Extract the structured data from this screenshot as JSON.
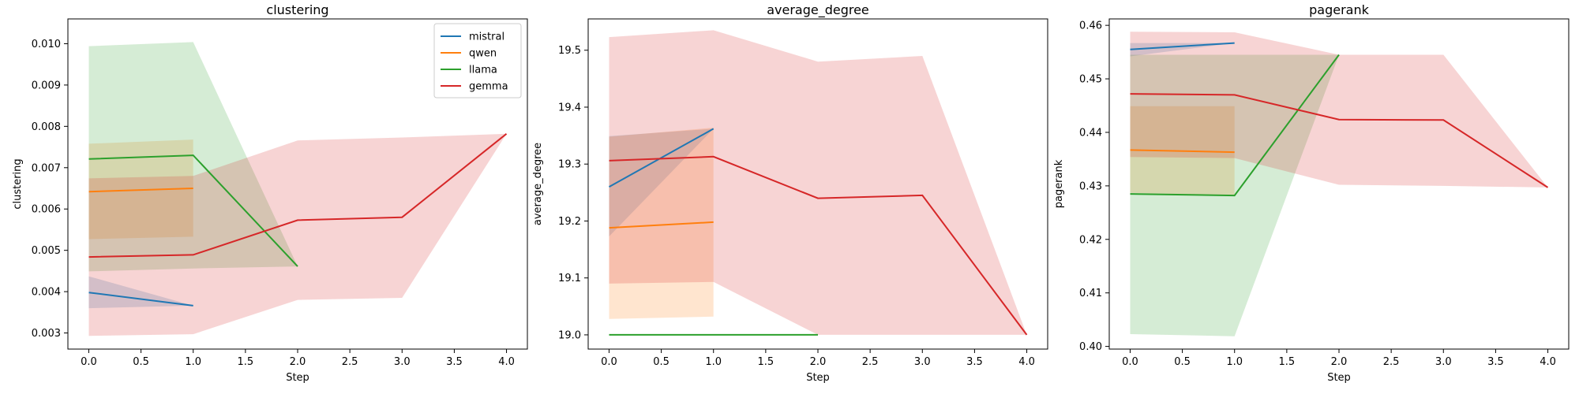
{
  "chart_data": [
    {
      "type": "line",
      "title": "clustering",
      "xlabel": "Step",
      "ylabel": "clustering",
      "xlim": [
        -0.2,
        4.2
      ],
      "ylim": [
        0.00261,
        0.0106
      ],
      "xticks": [
        0.0,
        0.5,
        1.0,
        1.5,
        2.0,
        2.5,
        3.0,
        3.5,
        4.0
      ],
      "xtick_labels": [
        "0.0",
        "0.5",
        "1.0",
        "1.5",
        "2.0",
        "2.5",
        "3.0",
        "3.5",
        "4.0"
      ],
      "yticks": [
        0.003,
        0.004,
        0.005,
        0.006,
        0.007,
        0.008,
        0.009,
        0.01
      ],
      "ytick_labels": [
        "0.003",
        "0.004",
        "0.005",
        "0.006",
        "0.007",
        "0.008",
        "0.009",
        "0.010"
      ],
      "legend": "top-right",
      "series": [
        {
          "name": "mistral",
          "color": "#1f77b4",
          "x": [
            0,
            1
          ],
          "y": [
            0.00398,
            0.00366
          ],
          "lower": [
            0.0036,
            0.00366
          ],
          "upper": [
            0.00437,
            0.00366
          ]
        },
        {
          "name": "qwen",
          "color": "#ff7f0e",
          "x": [
            0,
            1
          ],
          "y": [
            0.00642,
            0.0065
          ],
          "lower": [
            0.00527,
            0.00533
          ],
          "upper": [
            0.00758,
            0.00768
          ]
        },
        {
          "name": "llama",
          "color": "#2ca02c",
          "x": [
            0,
            1,
            2
          ],
          "y": [
            0.00721,
            0.0073,
            0.00461
          ],
          "lower": [
            0.00449,
            0.00456,
            0.00461
          ],
          "upper": [
            0.00994,
            0.01004,
            0.00461
          ]
        },
        {
          "name": "gemma",
          "color": "#d62728",
          "x": [
            0,
            1,
            2,
            3,
            4
          ],
          "y": [
            0.00484,
            0.00489,
            0.00573,
            0.0058,
            0.00782
          ],
          "lower": [
            0.00293,
            0.00297,
            0.0038,
            0.00385,
            0.00782
          ],
          "upper": [
            0.00674,
            0.0068,
            0.00766,
            0.00773,
            0.00782
          ]
        }
      ]
    },
    {
      "type": "line",
      "title": "average_degree",
      "xlabel": "Step",
      "ylabel": "average_degree",
      "xlim": [
        -0.2,
        4.2
      ],
      "ylim": [
        18.975,
        19.555
      ],
      "xticks": [
        0.0,
        0.5,
        1.0,
        1.5,
        2.0,
        2.5,
        3.0,
        3.5,
        4.0
      ],
      "xtick_labels": [
        "0.0",
        "0.5",
        "1.0",
        "1.5",
        "2.0",
        "2.5",
        "3.0",
        "3.5",
        "4.0"
      ],
      "yticks": [
        19.0,
        19.1,
        19.2,
        19.3,
        19.4,
        19.5
      ],
      "ytick_labels": [
        "19.0",
        "19.1",
        "19.2",
        "19.3",
        "19.4",
        "19.5"
      ],
      "series": [
        {
          "name": "mistral",
          "color": "#1f77b4",
          "x": [
            0,
            1
          ],
          "y": [
            19.26,
            19.362
          ],
          "lower": [
            19.173,
            19.362
          ],
          "upper": [
            19.349,
            19.362
          ]
        },
        {
          "name": "qwen",
          "color": "#ff7f0e",
          "x": [
            0,
            1
          ],
          "y": [
            19.188,
            19.198
          ],
          "lower": [
            19.028,
            19.032
          ],
          "upper": [
            19.348,
            19.364
          ]
        },
        {
          "name": "llama",
          "color": "#2ca02c",
          "x": [
            0,
            1,
            2
          ],
          "y": [
            19.0,
            19.0,
            19.0
          ],
          "lower": [
            19.0,
            19.0,
            19.0
          ],
          "upper": [
            19.0,
            19.0,
            19.0
          ]
        },
        {
          "name": "gemma",
          "color": "#d62728",
          "x": [
            0,
            1,
            2,
            3,
            4
          ],
          "y": [
            19.306,
            19.313,
            19.24,
            19.245,
            19.0
          ],
          "lower": [
            19.09,
            19.093,
            19.0,
            19.0,
            19.0
          ],
          "upper": [
            19.523,
            19.535,
            19.48,
            19.49,
            19.0
          ]
        }
      ]
    },
    {
      "type": "line",
      "title": "pagerank",
      "xlabel": "Step",
      "ylabel": "pagerank",
      "xlim": [
        -0.2,
        4.2
      ],
      "ylim": [
        0.3995,
        0.4612
      ],
      "xticks": [
        0.0,
        0.5,
        1.0,
        1.5,
        2.0,
        2.5,
        3.0,
        3.5,
        4.0
      ],
      "xtick_labels": [
        "0.0",
        "0.5",
        "1.0",
        "1.5",
        "2.0",
        "2.5",
        "3.0",
        "3.5",
        "4.0"
      ],
      "yticks": [
        0.4,
        0.41,
        0.42,
        0.43,
        0.44,
        0.45,
        0.46
      ],
      "ytick_labels": [
        "0.40",
        "0.41",
        "0.42",
        "0.43",
        "0.44",
        "0.45",
        "0.46"
      ],
      "series": [
        {
          "name": "mistral",
          "color": "#1f77b4",
          "x": [
            0,
            1
          ],
          "y": [
            0.4555,
            0.4567
          ],
          "lower": [
            0.4542,
            0.4567
          ],
          "upper": [
            0.4567,
            0.4567
          ]
        },
        {
          "name": "qwen",
          "color": "#ff7f0e",
          "x": [
            0,
            1
          ],
          "y": [
            0.4367,
            0.4363
          ],
          "lower": [
            0.4287,
            0.4282
          ],
          "upper": [
            0.4449,
            0.4449
          ]
        },
        {
          "name": "llama",
          "color": "#2ca02c",
          "x": [
            0,
            1,
            2
          ],
          "y": [
            0.4285,
            0.4282,
            0.4545
          ],
          "lower": [
            0.4023,
            0.4019,
            0.4545
          ],
          "upper": [
            0.4545,
            0.4545,
            0.4545
          ]
        },
        {
          "name": "gemma",
          "color": "#d62728",
          "x": [
            0,
            1,
            2,
            3,
            4
          ],
          "y": [
            0.4472,
            0.447,
            0.4424,
            0.4423,
            0.4297
          ],
          "lower": [
            0.4354,
            0.4352,
            0.4302,
            0.43,
            0.4297
          ],
          "upper": [
            0.4588,
            0.4587,
            0.4545,
            0.4545,
            0.4297
          ]
        }
      ]
    }
  ]
}
